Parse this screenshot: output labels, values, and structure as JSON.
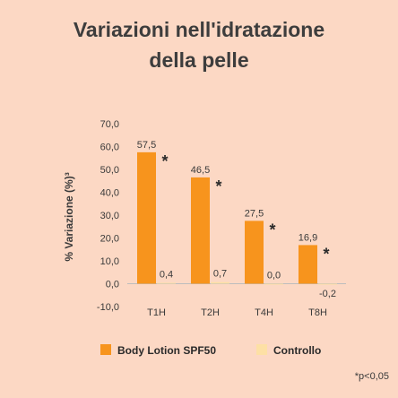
{
  "chart_data": {
    "type": "bar",
    "title_line1": "Variazioni nell'idratazione",
    "title_line2": "della pelle",
    "ylabel": "% Variazione (%)³",
    "xlabel": "",
    "categories": [
      "T1H",
      "T2H",
      "T4H",
      "T8H"
    ],
    "series": [
      {
        "name": "Body Lotion SPF50",
        "color": "#f7941d",
        "values": [
          57.5,
          46.5,
          27.5,
          16.9
        ],
        "labels": [
          "57,5",
          "46,5",
          "27,5",
          "16,9"
        ],
        "significance": [
          "*",
          "*",
          "*",
          "*"
        ]
      },
      {
        "name": "Controllo",
        "color": "#fde0a5",
        "values": [
          0.4,
          0.7,
          0.0,
          -0.2
        ],
        "labels": [
          "0,4",
          "0,7",
          "0,0",
          "-0,2"
        ]
      }
    ],
    "ylim": [
      -10,
      70
    ],
    "yticks": [
      -10,
      0,
      10,
      20,
      30,
      40,
      50,
      60,
      70
    ],
    "ytick_labels": [
      "-10,0",
      "0,0",
      "10,0",
      "20,0",
      "30,0",
      "40,0",
      "50,0",
      "60,0",
      "70,0"
    ],
    "grid": false,
    "legend_position": "bottom",
    "footnote": "*p<0,05"
  }
}
